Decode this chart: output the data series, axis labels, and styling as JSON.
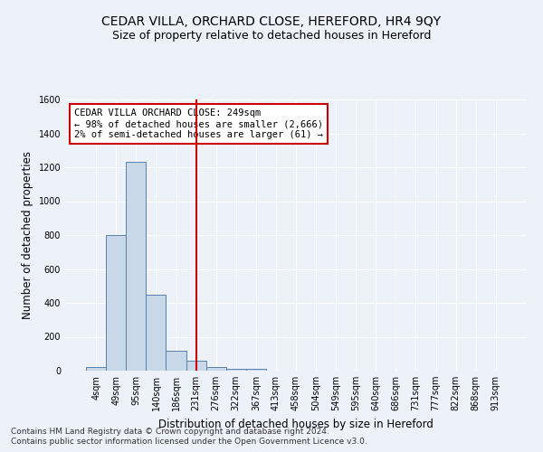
{
  "title": "CEDAR VILLA, ORCHARD CLOSE, HEREFORD, HR4 9QY",
  "subtitle": "Size of property relative to detached houses in Hereford",
  "xlabel": "Distribution of detached houses by size in Hereford",
  "ylabel": "Number of detached properties",
  "categories": [
    "4sqm",
    "49sqm",
    "95sqm",
    "140sqm",
    "186sqm",
    "231sqm",
    "276sqm",
    "322sqm",
    "367sqm",
    "413sqm",
    "458sqm",
    "504sqm",
    "549sqm",
    "595sqm",
    "640sqm",
    "686sqm",
    "731sqm",
    "777sqm",
    "822sqm",
    "868sqm",
    "913sqm"
  ],
  "values": [
    20,
    800,
    1230,
    450,
    120,
    60,
    20,
    10,
    10,
    0,
    0,
    0,
    0,
    0,
    0,
    0,
    0,
    0,
    0,
    0,
    0
  ],
  "bar_color": "#c8d8e8",
  "bar_edge_color": "#5580b0",
  "vline_x_index": 5,
  "vline_color": "#cc0000",
  "ylim": [
    0,
    1600
  ],
  "yticks": [
    0,
    200,
    400,
    600,
    800,
    1000,
    1200,
    1400,
    1600
  ],
  "annotation_title": "CEDAR VILLA ORCHARD CLOSE: 249sqm",
  "annotation_line1": "← 98% of detached houses are smaller (2,666)",
  "annotation_line2": "2% of semi-detached houses are larger (61) →",
  "footer_line1": "Contains HM Land Registry data © Crown copyright and database right 2024.",
  "footer_line2": "Contains public sector information licensed under the Open Government Licence v3.0.",
  "bg_color": "#edf2f9",
  "plot_bg_color": "#edf2f9",
  "grid_color": "#ffffff",
  "title_fontsize": 10,
  "subtitle_fontsize": 9,
  "tick_fontsize": 7,
  "ylabel_fontsize": 8.5,
  "xlabel_fontsize": 8.5,
  "footer_fontsize": 6.5
}
